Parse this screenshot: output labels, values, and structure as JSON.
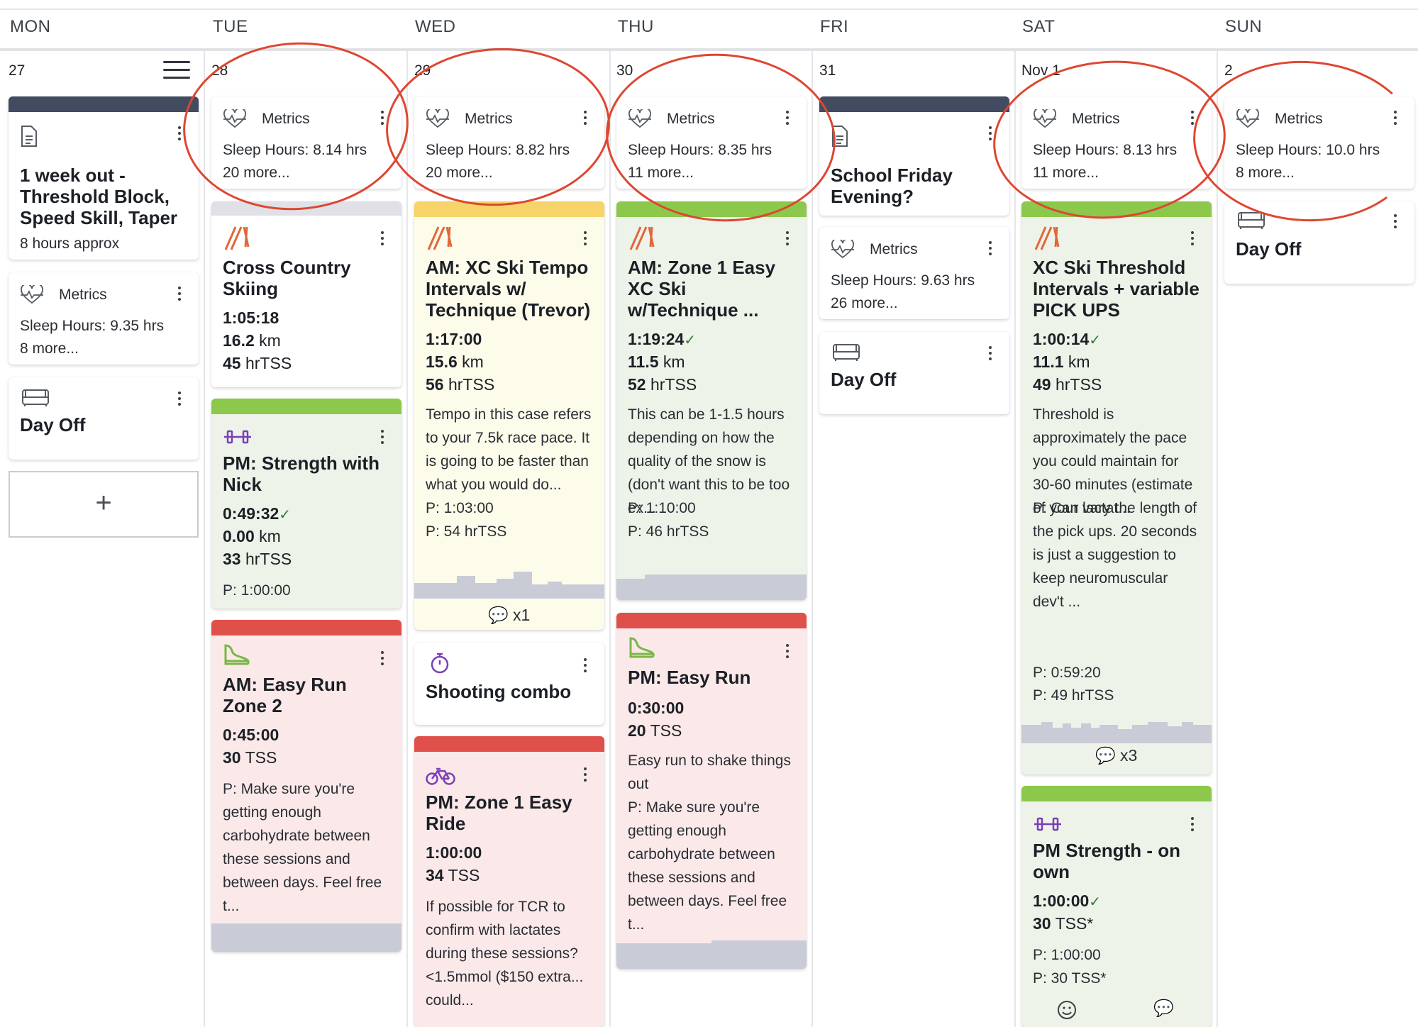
{
  "days": [
    "MON",
    "TUE",
    "WED",
    "THU",
    "FRI",
    "SAT",
    "SUN"
  ],
  "dates": [
    "27",
    "28",
    "29",
    "30",
    "31",
    "Nov 1",
    "2"
  ],
  "metrics_label": "Metrics",
  "mon": {
    "note": {
      "title": "1 week out - Threshold Block, Speed Skill, Taper",
      "subtitle": "8 hours approx"
    },
    "metrics": {
      "line1": "Sleep Hours: 9.35 hrs",
      "line2": "8 more..."
    },
    "dayoff": {
      "label": "Day Off"
    },
    "add": {
      "label": "+"
    }
  },
  "tue": {
    "metrics": {
      "line1": "Sleep Hours: 8.14 hrs",
      "line2": "20 more..."
    },
    "ski": {
      "title": "Cross Country Skiing",
      "duration": "1:05:18",
      "distance": "16.2",
      "distance_unit": "km",
      "tss": "45",
      "tss_unit": "hrTSS"
    },
    "strength": {
      "title": "PM: Strength with Nick",
      "duration": "0:49:32",
      "check": "✓",
      "distance": "0.00",
      "distance_unit": "km",
      "tss": "33",
      "tss_unit": "hrTSS",
      "planned": "P: 1:00:00"
    },
    "run": {
      "title": "AM: Easy Run Zone 2",
      "duration": "0:45:00",
      "tss": "30",
      "tss_unit": "TSS",
      "desc": "P: Make sure you're getting enough carbohydrate between these sessions and between days. Feel free t..."
    }
  },
  "wed": {
    "metrics": {
      "line1": "Sleep Hours: 8.82 hrs",
      "line2": "20 more..."
    },
    "ski": {
      "title": "AM: XC Ski Tempo Intervals w/ Technique (Trevor)",
      "duration": "1:17:00",
      "distance": "15.6",
      "distance_unit": "km",
      "tss": "56",
      "tss_unit": "hrTSS",
      "desc": "Tempo in this case refers to your 7.5k race pace. It is going to be faster than what you would do...",
      "planned_time": "P: 1:03:00",
      "planned_tss": "P: 54 hrTSS",
      "comments": "x1"
    },
    "shooting": {
      "title": "Shooting combo"
    },
    "ride": {
      "title": "PM: Zone 1 Easy Ride",
      "duration": "1:00:00",
      "tss": "34",
      "tss_unit": "TSS",
      "desc": "If possible for TCR to confirm with lactates during these sessions? <1.5mmol ($150 extra... could..."
    }
  },
  "thu": {
    "metrics": {
      "line1": "Sleep Hours: 8.35 hrs",
      "line2": "11 more..."
    },
    "ski": {
      "title": "AM: Zone 1 Easy XC Ski w/Technique ...",
      "duration": "1:19:24",
      "check": "✓",
      "distance": "11.5",
      "distance_unit": "km",
      "tss": "52",
      "tss_unit": "hrTSS",
      "desc": "This can be 1-1.5 hours depending on how the quality of the snow is (don't want this to be too ex...",
      "planned_time": "P: 1:10:00",
      "planned_tss": "P: 46 hrTSS"
    },
    "run": {
      "title": "PM: Easy Run",
      "duration": "0:30:00",
      "tss": "20",
      "tss_unit": "TSS",
      "desc": "Easy run to shake things out",
      "plan": "P: Make sure you're getting enough carbohydrate between these sessions and between days. Feel free t..."
    }
  },
  "fri": {
    "note": {
      "title": "School Friday Evening?"
    },
    "metrics": {
      "line1": "Sleep Hours: 9.63 hrs",
      "line2": "26 more..."
    },
    "dayoff": {
      "label": "Day Off"
    }
  },
  "sat": {
    "metrics": {
      "line1": "Sleep Hours: 8.13 hrs",
      "line2": "11 more..."
    },
    "ski": {
      "title": "XC Ski Threshold Intervals + variable PICK UPS",
      "duration": "1:00:14",
      "check": "✓",
      "distance": "11.1",
      "distance_unit": "km",
      "tss": "49",
      "tss_unit": "hrTSS",
      "desc": "Threshold is approximately the pace you could maintain for 30-60 minutes (estimate of your lactat...",
      "plan": "P: Can vary the length of the pick ups. 20 seconds is just a suggestion to keep neuromuscular dev't ...",
      "planned_time": "P: 0:59:20",
      "planned_tss": "P: 49 hrTSS",
      "comments": "x3"
    },
    "strength": {
      "title": "PM Strength - on own",
      "duration": "1:00:00",
      "check": "✓",
      "tss": "30",
      "tss_unit": "TSS*",
      "planned_time": "P: 1:00:00",
      "planned_tss": "P: 30 TSS*"
    }
  },
  "sun": {
    "metrics": {
      "line1": "Sleep Hours: 10.0 hrs",
      "line2": "8 more..."
    },
    "dayoff": {
      "label": "Day Off"
    }
  },
  "colors": {
    "compliance_green": "#8cc84b",
    "compliance_yellow": "#f7d46a",
    "compliance_red": "#e0504a",
    "note_bar": "#434b61",
    "annotation": "#de4631",
    "ski_icon": "#e0683a",
    "run_icon": "#7ab648",
    "strength_icon": "#7a3fb8"
  },
  "icons": [
    "hamburger-menu-icon",
    "document-icon",
    "heart-pulse-icon",
    "xc-ski-icon",
    "dumbbell-icon",
    "running-shoe-icon",
    "stopwatch-icon",
    "bicycle-icon",
    "sofa-icon",
    "comments-icon",
    "smiley-icon",
    "kebab-menu-icon",
    "check-icon"
  ]
}
